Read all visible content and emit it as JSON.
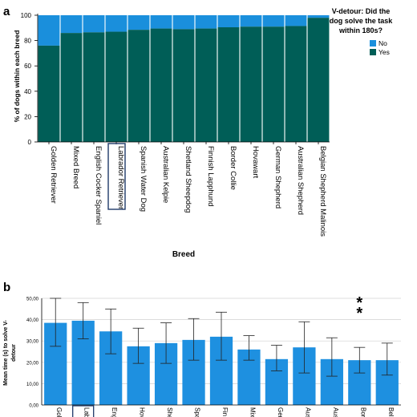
{
  "colors": {
    "no": "#1a8fdc",
    "yes": "#005e57",
    "bar_b": "#1e90e0",
    "highlight": "#1f3a6a"
  },
  "panel_a": {
    "panel_label": "a",
    "legend_title_lines": [
      "V-detour: Did the",
      "dog solve the task",
      "within 180s?"
    ]
  },
  "panel_b": {
    "panel_label": "b",
    "significance_marker": "*"
  },
  "chart_data": [
    {
      "type": "bar",
      "stacked": true,
      "title": "",
      "xlabel": "Breed",
      "ylabel": "% of dogs within each breed",
      "ylim": [
        0,
        100
      ],
      "yticks": [
        "0",
        "20",
        "40",
        "60",
        "80",
        "100"
      ],
      "categories": [
        "Golden Retriever",
        "Mixed Breed",
        "English Cocker Spaniel",
        "Labrador Retriever",
        "Spanish Water Dog",
        "Australian Kelpie",
        "Shetland Sheepdog",
        "Finnish Lapphund",
        "Border Collie",
        "Hovawart",
        "German Shepherd",
        "Australian Shepherd",
        "Belgian Shepherd Malinois"
      ],
      "highlighted_category": "Labrador Retriever",
      "series": [
        {
          "name": "Yes",
          "values": [
            76,
            86,
            86.5,
            87,
            88.5,
            89.5,
            89,
            89.5,
            90.5,
            91,
            91,
            91.5,
            98
          ]
        },
        {
          "name": "No",
          "values": [
            24,
            14,
            13.5,
            13,
            11.5,
            10.5,
            11,
            10.5,
            9.5,
            9,
            9,
            8.5,
            2
          ]
        }
      ],
      "legend": {
        "title": "V-detour: Did the dog solve the task within 180s?",
        "entries": [
          "No",
          "Yes"
        ],
        "placement": "right"
      },
      "grid": false
    },
    {
      "type": "bar",
      "title": "",
      "xlabel": "",
      "ylabel": "Mean time (s) to solve V-detour",
      "ylim": [
        0,
        50
      ],
      "yticks": [
        "0,00",
        "10,00",
        "20,00",
        "30,00",
        "40,00",
        "50,00"
      ],
      "categories": [
        "Gol",
        "Lab",
        "Eng",
        "Hov",
        "She",
        "Spa",
        "Fin",
        "Mix",
        "Ger",
        "Aus",
        "Aus",
        "Bor",
        "Bel"
      ],
      "highlighted_category_index": 1,
      "values": [
        38.5,
        39.5,
        34.5,
        27.5,
        29,
        30.5,
        32,
        26,
        21.5,
        27,
        21.5,
        21,
        21
      ],
      "error_low": [
        27.5,
        31,
        24,
        19.5,
        19.5,
        21,
        21,
        21,
        16,
        15,
        13.5,
        15,
        14
      ],
      "error_high": [
        50,
        48,
        45,
        36,
        38.5,
        40.5,
        43.5,
        32.5,
        28,
        39,
        31.5,
        27,
        29
      ],
      "annotations": [
        {
          "text": "*",
          "category_index": 11
        },
        {
          "text": "*",
          "category_index": 11
        }
      ],
      "grid": true
    }
  ]
}
